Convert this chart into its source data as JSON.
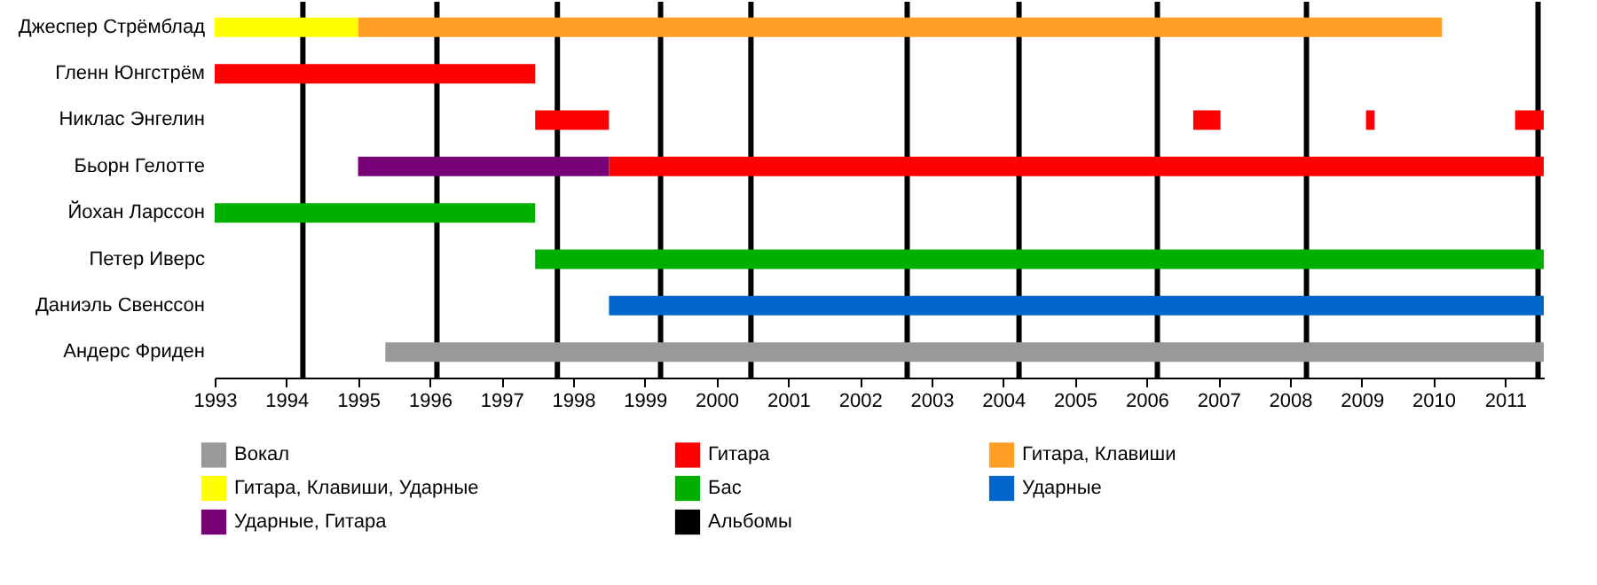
{
  "chart_data": {
    "type": "bar",
    "orientation": "horizontal",
    "legend": "bottom",
    "grid": false,
    "categories": [
      "Джеспер Стрёмблад",
      "Гленн Юнгстрём",
      "Никлас Энгелин",
      "Бьорн Гелотте",
      "Йохан Ларссон",
      "Петер Иверс",
      "Даниэль Свенссон",
      "Андерс Фриден"
    ],
    "series": [
      {
        "name": "Вокал",
        "color": "#999999",
        "base": [
          null,
          null,
          null,
          null,
          null,
          null,
          null,
          1995.38
        ],
        "values": [
          null,
          null,
          null,
          null,
          null,
          null,
          null,
          16.16
        ]
      },
      {
        "name": "Гитара",
        "color": "#ff0000",
        "base": [
          null,
          1993,
          1997.47,
          1998.5,
          null,
          null,
          null,
          null
        ],
        "values": [
          null,
          4.47,
          1.03,
          13.04,
          null,
          null,
          null,
          null
        ]
      },
      {
        "name": "Гитара, Клавиши",
        "color": "#ff9f25",
        "base": [
          1995,
          null,
          null,
          null,
          null,
          null,
          null,
          null
        ],
        "values": [
          15.12,
          null,
          null,
          null,
          null,
          null,
          null,
          null
        ]
      },
      {
        "name": "Гитара, Клавиши, Ударные",
        "color": "#ffff00",
        "base": [
          1993,
          null,
          null,
          null,
          null,
          null,
          null,
          null
        ],
        "values": [
          2,
          null,
          null,
          null,
          null,
          null,
          null,
          null
        ]
      },
      {
        "name": "Бас",
        "color": "#00b000",
        "base": [
          null,
          null,
          null,
          null,
          1993,
          1997.47,
          null,
          null
        ],
        "values": [
          null,
          null,
          null,
          null,
          4.47,
          14.07,
          null,
          null
        ]
      },
      {
        "name": "Ударные",
        "color": "#0066cc",
        "base": [
          null,
          null,
          null,
          null,
          null,
          null,
          1998.5,
          null
        ],
        "values": [
          null,
          null,
          null,
          null,
          null,
          null,
          13.04,
          null
        ]
      },
      {
        "name": "Ударные, Гитара",
        "color": "#770077",
        "base": [
          null,
          null,
          null,
          1995,
          null,
          null,
          null,
          null
        ],
        "values": [
          null,
          null,
          null,
          3.5,
          null,
          null,
          null,
          null
        ]
      },
      {
        "color": "#ff0000",
        "base": [
          null,
          null,
          2006.65,
          null,
          null,
          null,
          null,
          null
        ],
        "values": [
          null,
          null,
          0.38,
          null,
          null,
          null,
          null,
          null
        ]
      },
      {
        "color": "#ff0000",
        "base": [
          null,
          null,
          2009.06,
          null,
          null,
          null,
          null,
          null
        ],
        "values": [
          null,
          null,
          0.12,
          null,
          null,
          null,
          null,
          null
        ]
      },
      {
        "color": "#ff0000",
        "base": [
          null,
          null,
          2011.14,
          null,
          null,
          null,
          null,
          null
        ],
        "values": [
          null,
          null,
          0.4,
          null,
          null,
          null,
          null,
          null
        ]
      }
    ],
    "xlim": [
      1993,
      2011.54
    ],
    "xticks": [
      1993,
      1994,
      1995,
      1996,
      1997,
      1998,
      1999,
      2000,
      2001,
      2002,
      2003,
      2004,
      2005,
      2006,
      2007,
      2008,
      2009,
      2010,
      2011
    ],
    "ref_lines": [
      {
        "axis": "x",
        "value": 1994.23,
        "label": "Альбомы",
        "color": "#000000"
      },
      {
        "axis": "x",
        "value": 1996.1,
        "color": "#000000"
      },
      {
        "axis": "x",
        "value": 1997.78,
        "color": "#000000"
      },
      {
        "axis": "x",
        "value": 1999.22,
        "color": "#000000"
      },
      {
        "axis": "x",
        "value": 2000.48,
        "color": "#000000"
      },
      {
        "axis": "x",
        "value": 2002.66,
        "color": "#000000"
      },
      {
        "axis": "x",
        "value": 2004.22,
        "color": "#000000"
      },
      {
        "axis": "x",
        "value": 2006.15,
        "color": "#000000"
      },
      {
        "axis": "x",
        "value": 2008.23,
        "color": "#000000"
      },
      {
        "axis": "x",
        "value": 2011.46,
        "color": "#000000"
      }
    ]
  }
}
